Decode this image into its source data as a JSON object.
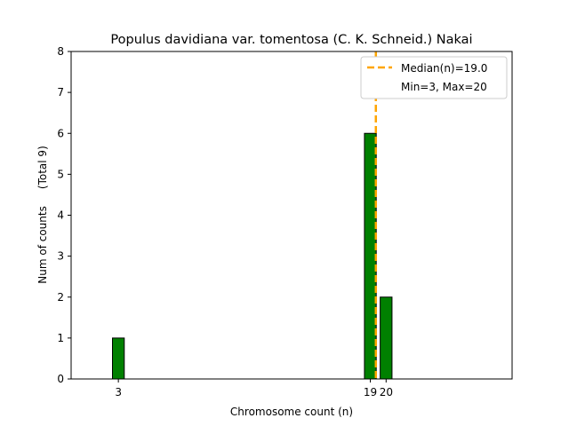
{
  "chart_data": {
    "type": "bar",
    "title": "Populus davidiana var. tomentosa (C. K. Schneid.) Nakai",
    "xlabel": "Chromosome count (n)",
    "ylabel": "Num of counts     (Total 9)",
    "xlim": [
      0,
      28
    ],
    "ylim": [
      0,
      8
    ],
    "y_ticks": [
      "0",
      "1",
      "2",
      "3",
      "4",
      "5",
      "6",
      "7",
      "8"
    ],
    "x_ticks": [
      "3",
      "19",
      "20"
    ],
    "bins": [
      {
        "x": 3,
        "count": 1
      },
      {
        "x": 19,
        "count": 6
      },
      {
        "x": 20,
        "count": 2
      },
      {
        "x": 21,
        "count": 0
      },
      {
        "x": 22,
        "count": 0
      }
    ],
    "median": 19.0,
    "min": 3,
    "max": 20,
    "grid": false,
    "legend_position": "top-right",
    "legend": [
      {
        "label": "Median(n)=19.0",
        "style": "dashed-line"
      },
      {
        "label": "Min=3, Max=20",
        "style": "none"
      }
    ],
    "colors": {
      "bar": "#008000",
      "bar_edge": "#000000",
      "median_line": "#FFA500"
    }
  }
}
